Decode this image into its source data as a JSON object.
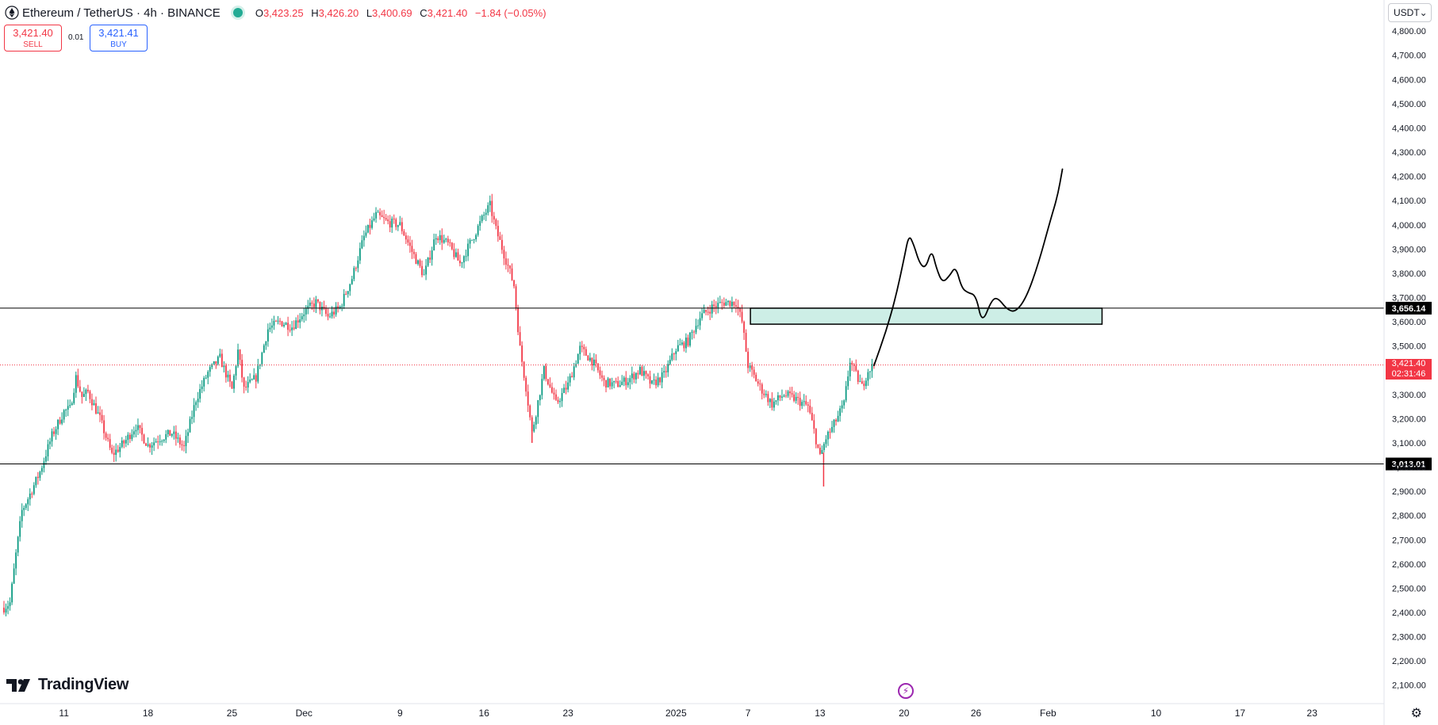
{
  "header": {
    "symbol": "Ethereum / TetherUS · 4h · BINANCE",
    "o_label": "O",
    "o": "3,423.25",
    "h_label": "H",
    "h": "3,426.20",
    "l_label": "L",
    "l": "3,400.69",
    "c_label": "C",
    "c": "3,421.40",
    "change": "−1.84 (−0.05%)"
  },
  "trade": {
    "sell_price": "3,421.40",
    "sell_label": "SELL",
    "spread": "0.01",
    "buy_price": "3,421.41",
    "buy_label": "BUY"
  },
  "currency": "USDT",
  "brand": "TradingView",
  "colors": {
    "up": "#089981",
    "down": "#f23645",
    "zone_fill": "#cdeee6",
    "line": "#000000"
  },
  "chart_data": {
    "type": "candlestick",
    "ylim": [
      2050,
      4830
    ],
    "x_range_days": [
      0,
      115
    ],
    "y_ticks": [
      2100,
      2200,
      2300,
      2400,
      2500,
      2600,
      2700,
      2800,
      2900,
      3000,
      3100,
      3200,
      3300,
      3400,
      3500,
      3600,
      3700,
      3800,
      3900,
      4000,
      4100,
      4200,
      4300,
      4400,
      4500,
      4600,
      4700,
      4800
    ],
    "y_tick_labels": [
      "2,100.00",
      "2,200.00",
      "2,300.00",
      "2,400.00",
      "2,500.00",
      "2,600.00",
      "2,700.00",
      "2,800.00",
      "2,900.00",
      "3,000.00",
      "3,100.00",
      "3,200.00",
      "3,300.00",
      "3,400.00",
      "3,500.00",
      "3,600.00",
      "3,700.00",
      "3,800.00",
      "3,900.00",
      "4,000.00",
      "4,100.00",
      "4,200.00",
      "4,300.00",
      "4,400.00",
      "4,500.00",
      "4,600.00",
      "4,700.00",
      "4,800.00"
    ],
    "x_ticks": [
      {
        "day": 5,
        "label": "11"
      },
      {
        "day": 12,
        "label": "18"
      },
      {
        "day": 19,
        "label": "25"
      },
      {
        "day": 25,
        "label": "Dec"
      },
      {
        "day": 33,
        "label": "9"
      },
      {
        "day": 40,
        "label": "16"
      },
      {
        "day": 47,
        "label": "23"
      },
      {
        "day": 56,
        "label": "2025"
      },
      {
        "day": 62,
        "label": "7"
      },
      {
        "day": 68,
        "label": "13"
      },
      {
        "day": 75,
        "label": "20"
      },
      {
        "day": 81,
        "label": "26"
      },
      {
        "day": 87,
        "label": "Feb"
      },
      {
        "day": 96,
        "label": "10"
      },
      {
        "day": 103,
        "label": "17"
      },
      {
        "day": 109,
        "label": "23"
      }
    ],
    "price_path": [
      [
        0,
        2420
      ],
      [
        0.5,
        2440
      ],
      [
        1,
        2640
      ],
      [
        1.5,
        2820
      ],
      [
        2,
        2870
      ],
      [
        3,
        2980
      ],
      [
        4,
        3130
      ],
      [
        5,
        3230
      ],
      [
        5.5,
        3240
      ],
      [
        6,
        3370
      ],
      [
        6.5,
        3290
      ],
      [
        7,
        3310
      ],
      [
        8,
        3200
      ],
      [
        9,
        3050
      ],
      [
        10,
        3100
      ],
      [
        11,
        3170
      ],
      [
        12,
        3090
      ],
      [
        13,
        3120
      ],
      [
        14,
        3140
      ],
      [
        15,
        3080
      ],
      [
        16,
        3280
      ],
      [
        17,
        3390
      ],
      [
        18,
        3450
      ],
      [
        19,
        3320
      ],
      [
        19.5,
        3480
      ],
      [
        20,
        3320
      ],
      [
        21,
        3370
      ],
      [
        22,
        3570
      ],
      [
        23,
        3600
      ],
      [
        24,
        3580
      ],
      [
        25,
        3640
      ],
      [
        26,
        3680
      ],
      [
        27,
        3620
      ],
      [
        28,
        3660
      ],
      [
        29,
        3780
      ],
      [
        30,
        3950
      ],
      [
        31,
        4040
      ],
      [
        32,
        4010
      ],
      [
        33,
        4000
      ],
      [
        34,
        3890
      ],
      [
        35,
        3790
      ],
      [
        36,
        3960
      ],
      [
        37,
        3920
      ],
      [
        38,
        3840
      ],
      [
        39,
        3940
      ],
      [
        40,
        4040
      ],
      [
        40.5,
        4080
      ],
      [
        41,
        3980
      ],
      [
        42,
        3830
      ],
      [
        42.5,
        3750
      ],
      [
        43,
        3490
      ],
      [
        43.5,
        3330
      ],
      [
        44,
        3140
      ],
      [
        45,
        3400
      ],
      [
        46,
        3260
      ],
      [
        47,
        3340
      ],
      [
        48,
        3490
      ],
      [
        49,
        3440
      ],
      [
        50,
        3350
      ],
      [
        51,
        3340
      ],
      [
        52,
        3360
      ],
      [
        53,
        3400
      ],
      [
        54,
        3340
      ],
      [
        55,
        3380
      ],
      [
        56,
        3490
      ],
      [
        57,
        3520
      ],
      [
        58,
        3620
      ],
      [
        59,
        3660
      ],
      [
        60,
        3680
      ],
      [
        61,
        3680
      ],
      [
        61.5,
        3600
      ],
      [
        62,
        3420
      ],
      [
        63,
        3330
      ],
      [
        64,
        3260
      ],
      [
        65,
        3300
      ],
      [
        66,
        3280
      ],
      [
        67,
        3250
      ],
      [
        67.5,
        3150
      ],
      [
        68,
        3040
      ],
      [
        68.5,
        3120
      ],
      [
        69,
        3160
      ],
      [
        70,
        3260
      ],
      [
        70.5,
        3440
      ],
      [
        71,
        3380
      ],
      [
        71.5,
        3330
      ],
      [
        72,
        3400
      ],
      [
        72.5,
        3421
      ]
    ],
    "events": [
      {
        "day": 44,
        "low": 3100,
        "high": 3150
      },
      {
        "day": 68.3,
        "low": 2920,
        "high": 3060
      }
    ],
    "horizontal_lines": [
      {
        "price": 3656.14,
        "label": "3,656.14"
      },
      {
        "price": 3013.01,
        "label": "3,013.01"
      }
    ],
    "current_price": {
      "price": 3421.4,
      "label": "3,421.40",
      "countdown": "02:31:46"
    },
    "zone": {
      "day_start": 62.2,
      "day_end": 91.5,
      "price_low": 3590,
      "price_high": 3656
    },
    "projection": [
      [
        72.5,
        3420
      ],
      [
        73.5,
        3560
      ],
      [
        74.3,
        3700
      ],
      [
        75,
        3860
      ],
      [
        75.4,
        3960
      ],
      [
        75.8,
        3920
      ],
      [
        76.3,
        3840
      ],
      [
        76.8,
        3820
      ],
      [
        77.3,
        3900
      ],
      [
        77.7,
        3820
      ],
      [
        78.2,
        3760
      ],
      [
        78.8,
        3790
      ],
      [
        79.3,
        3830
      ],
      [
        79.8,
        3740
      ],
      [
        80.3,
        3720
      ],
      [
        81,
        3710
      ],
      [
        81.5,
        3590
      ],
      [
        82.3,
        3690
      ],
      [
        82.8,
        3700
      ],
      [
        83.6,
        3650
      ],
      [
        84.3,
        3640
      ],
      [
        85.2,
        3700
      ],
      [
        86.2,
        3840
      ],
      [
        87.2,
        4020
      ],
      [
        87.8,
        4120
      ],
      [
        88.2,
        4230
      ]
    ]
  }
}
